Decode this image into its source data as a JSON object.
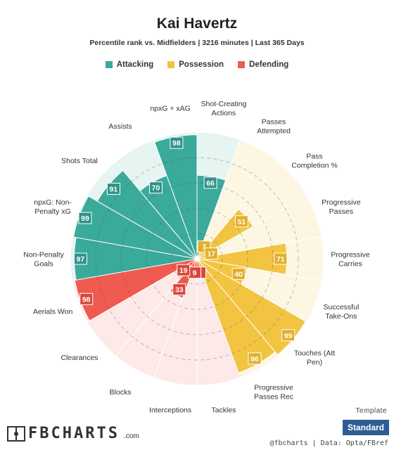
{
  "header": {
    "title": "Kai Havertz",
    "subtitle": "Percentile rank vs. Midfielders | 3216 minutes | Last 365 Days"
  },
  "legend": [
    {
      "label": "Attacking",
      "color": "#3aaa9b"
    },
    {
      "label": "Possession",
      "color": "#f2c441"
    },
    {
      "label": "Defending",
      "color": "#ef5b50"
    }
  ],
  "chart_data": {
    "type": "polar-bar",
    "max": 100,
    "ring_values": [
      20,
      40,
      60,
      80,
      100
    ],
    "categories": [
      {
        "label": "Shot-Creating Actions",
        "lines": [
          "Shot-Creating",
          "Actions"
        ],
        "value": 66,
        "group": "Attacking"
      },
      {
        "label": "Passes Attempted",
        "lines": [
          "Passes",
          "Attempted"
        ],
        "value": 7,
        "group": "Possession"
      },
      {
        "label": "Pass Completion %",
        "lines": [
          "Pass",
          "Completion %"
        ],
        "value": 51,
        "group": "Possession"
      },
      {
        "label": "Progressive Passes",
        "lines": [
          "Progressive",
          "Passes"
        ],
        "value": 17,
        "group": "Possession"
      },
      {
        "label": "Progressive Carries",
        "lines": [
          "Progressive",
          "Carries"
        ],
        "value": 71,
        "group": "Possession"
      },
      {
        "label": "Successful Take-Ons",
        "lines": [
          "Successful",
          "Take-Ons"
        ],
        "value": 40,
        "group": "Possession"
      },
      {
        "label": "Touches (Att Pen)",
        "lines": [
          "Touches (Att",
          "Pen)"
        ],
        "value": 99,
        "group": "Possession"
      },
      {
        "label": "Progressive Passes Rec",
        "lines": [
          "Progressive",
          "Passes Rec"
        ],
        "value": 96,
        "group": "Possession"
      },
      {
        "label": "Tackles",
        "lines": [
          "Tackles"
        ],
        "value": 8,
        "group": "Defending"
      },
      {
        "label": "Interceptions",
        "lines": [
          "Interceptions"
        ],
        "value": 9,
        "group": "Defending"
      },
      {
        "label": "Blocks",
        "lines": [
          "Blocks"
        ],
        "value": 33,
        "group": "Defending"
      },
      {
        "label": "Clearances",
        "lines": [
          "Clearances"
        ],
        "value": 19,
        "group": "Defending"
      },
      {
        "label": "Aerials Won",
        "lines": [
          "Aerials Won"
        ],
        "value": 98,
        "group": "Defending"
      },
      {
        "label": "Non-Penalty Goals",
        "lines": [
          "Non-Penalty",
          "Goals"
        ],
        "value": 97,
        "group": "Attacking"
      },
      {
        "label": "npxG: Non-Penalty xG",
        "lines": [
          "npxG: Non-",
          "Penalty xG"
        ],
        "value": 99,
        "group": "Attacking"
      },
      {
        "label": "Shots Total",
        "lines": [
          "Shots Total"
        ],
        "value": 91,
        "group": "Attacking"
      },
      {
        "label": "Assists",
        "lines": [
          "Assists"
        ],
        "value": 70,
        "group": "Attacking"
      },
      {
        "label": "npxG + xAG",
        "lines": [
          "npxG + xAG"
        ],
        "value": 98,
        "group": "Attacking"
      }
    ],
    "group_colors": {
      "Attacking": {
        "fill": "#3aaa9b",
        "bg": "#e6f4f2",
        "badge": "#2f9488"
      },
      "Possession": {
        "fill": "#f2c441",
        "bg": "#fdf6e3",
        "badge": "#e0b02a"
      },
      "Defending": {
        "fill": "#ef5b50",
        "bg": "#fde9e8",
        "badge": "#d9473d"
      }
    }
  },
  "footer": {
    "template_label": "Template",
    "template_button": "Standard",
    "brand_name": "FBCHARTS",
    "brand_tld": ".com",
    "credit": "@fbcharts | Data: Opta/FBref"
  }
}
